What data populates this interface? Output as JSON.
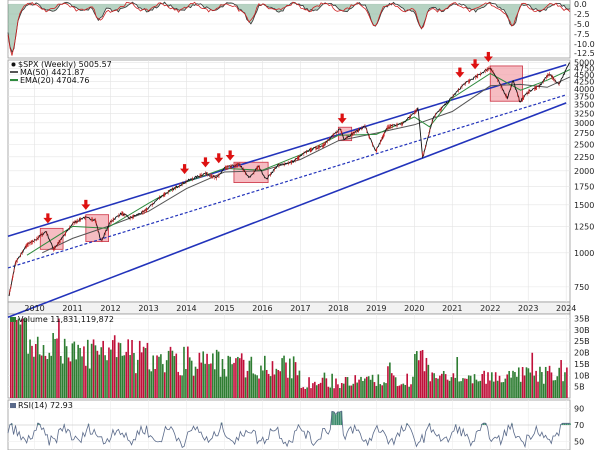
{
  "chart_data": [
    {
      "panel": "indicator-top",
      "type": "line",
      "y_tick_labels": [
        "0.0",
        "-2.5",
        "-5.0",
        "-7.5",
        "-10.0",
        "-12.5"
      ],
      "ylim": [
        -13.5,
        1
      ],
      "colors": {
        "line_dark": "#333333",
        "line_red": "#cc2222",
        "fill": "#2e7d4f"
      }
    },
    {
      "panel": "price",
      "type": "line",
      "title": "$SPX (Weekly) 5005.57",
      "legend": [
        {
          "label": "MA(50) 4421.87",
          "color": "#555555"
        },
        {
          "label": "EMA(20) 4704.76",
          "color": "#2e8b3e"
        }
      ],
      "y_scale": "log",
      "ylim": [
        660,
        5100
      ],
      "y_tick_labels": [
        "5000",
        "4750",
        "4500",
        "4250",
        "4000",
        "3750",
        "3500",
        "3250",
        "3000",
        "2750",
        "2500",
        "2250",
        "2000",
        "1750",
        "1500",
        "1250",
        "1000",
        "750"
      ],
      "y_tick_values": [
        5000,
        4750,
        4500,
        4250,
        4000,
        3750,
        3500,
        3250,
        3000,
        2750,
        2500,
        2250,
        2000,
        1750,
        1500,
        1250,
        1000,
        750
      ],
      "x_tick_labels": [
        "2010",
        "2011",
        "2012",
        "2013",
        "2014",
        "2015",
        "2016",
        "2017",
        "2018",
        "2019",
        "2020",
        "2021",
        "2022",
        "2023",
        "2024"
      ],
      "x_range": [
        2009.3,
        2024.1
      ],
      "price_points": [
        [
          2009.33,
          700
        ],
        [
          2009.5,
          920
        ],
        [
          2009.8,
          1070
        ],
        [
          2010.0,
          1110
        ],
        [
          2010.3,
          1200
        ],
        [
          2010.5,
          1030
        ],
        [
          2010.7,
          1120
        ],
        [
          2011.0,
          1280
        ],
        [
          2011.3,
          1350
        ],
        [
          2011.6,
          1320
        ],
        [
          2011.75,
          1100
        ],
        [
          2012.0,
          1300
        ],
        [
          2012.3,
          1400
        ],
        [
          2012.5,
          1340
        ],
        [
          2012.9,
          1420
        ],
        [
          2013.3,
          1600
        ],
        [
          2013.6,
          1700
        ],
        [
          2014.0,
          1830
        ],
        [
          2014.5,
          1960
        ],
        [
          2014.8,
          1880
        ],
        [
          2015.0,
          2050
        ],
        [
          2015.4,
          2110
        ],
        [
          2015.65,
          1880
        ],
        [
          2015.9,
          2080
        ],
        [
          2016.1,
          1860
        ],
        [
          2016.4,
          2090
        ],
        [
          2016.8,
          2160
        ],
        [
          2017.2,
          2370
        ],
        [
          2017.6,
          2480
        ],
        [
          2018.05,
          2860
        ],
        [
          2018.15,
          2620
        ],
        [
          2018.7,
          2920
        ],
        [
          2018.98,
          2350
        ],
        [
          2019.3,
          2900
        ],
        [
          2019.7,
          2980
        ],
        [
          2020.1,
          3380
        ],
        [
          2020.22,
          2240
        ],
        [
          2020.5,
          3150
        ],
        [
          2020.9,
          3600
        ],
        [
          2021.3,
          4150
        ],
        [
          2021.7,
          4500
        ],
        [
          2022.0,
          4790
        ],
        [
          2022.2,
          4300
        ],
        [
          2022.45,
          3700
        ],
        [
          2022.6,
          4300
        ],
        [
          2022.78,
          3580
        ],
        [
          2023.0,
          3900
        ],
        [
          2023.3,
          4100
        ],
        [
          2023.55,
          4550
        ],
        [
          2023.8,
          4150
        ],
        [
          2024.1,
          5005
        ]
      ],
      "ma50_points": [
        [
          2010.2,
          1000
        ],
        [
          2011.0,
          1130
        ],
        [
          2012.0,
          1260
        ],
        [
          2013.0,
          1420
        ],
        [
          2014.0,
          1720
        ],
        [
          2015.0,
          1980
        ],
        [
          2016.0,
          2000
        ],
        [
          2017.0,
          2200
        ],
        [
          2018.0,
          2580
        ],
        [
          2019.0,
          2750
        ],
        [
          2020.0,
          2950
        ],
        [
          2021.0,
          3300
        ],
        [
          2022.0,
          4100
        ],
        [
          2022.8,
          4150
        ],
        [
          2023.5,
          4050
        ],
        [
          2024.1,
          4420
        ]
      ],
      "ema20_points": [
        [
          2009.8,
          980
        ],
        [
          2011.0,
          1250
        ],
        [
          2011.9,
          1230
        ],
        [
          2013.0,
          1520
        ],
        [
          2014.0,
          1820
        ],
        [
          2015.0,
          2040
        ],
        [
          2016.0,
          2010
        ],
        [
          2017.0,
          2290
        ],
        [
          2018.0,
          2700
        ],
        [
          2019.0,
          2720
        ],
        [
          2020.0,
          3150
        ],
        [
          2020.4,
          2900
        ],
        [
          2021.0,
          3700
        ],
        [
          2022.0,
          4550
        ],
        [
          2022.8,
          3950
        ],
        [
          2023.5,
          4300
        ],
        [
          2024.1,
          4705
        ]
      ],
      "channel_lines": [
        {
          "style": "solid",
          "from": [
            2009.3,
            1150
          ],
          "to": [
            2024.0,
            4900
          ]
        },
        {
          "style": "solid",
          "from": [
            2009.3,
            580
          ],
          "to": [
            2024.0,
            3550
          ]
        },
        {
          "style": "dashed",
          "from": [
            2009.3,
            880
          ],
          "to": [
            2024.0,
            3800
          ]
        }
      ],
      "highlight_boxes": [
        {
          "x": [
            2010.15,
            2010.75
          ],
          "y": [
            1030,
            1230
          ]
        },
        {
          "x": [
            2011.35,
            2011.95
          ],
          "y": [
            1100,
            1380
          ]
        },
        {
          "x": [
            2015.25,
            2016.15
          ],
          "y": [
            1810,
            2150
          ]
        },
        {
          "x": [
            2018.0,
            2018.35
          ],
          "y": [
            2580,
            2890
          ]
        },
        {
          "x": [
            2022.0,
            2022.85
          ],
          "y": [
            3600,
            4850
          ]
        }
      ],
      "arrow_markers": [
        {
          "x": 2010.35,
          "price": 1240
        },
        {
          "x": 2011.35,
          "price": 1390
        },
        {
          "x": 2013.95,
          "price": 1880
        },
        {
          "x": 2014.5,
          "price": 1990
        },
        {
          "x": 2014.85,
          "price": 2060
        },
        {
          "x": 2015.15,
          "price": 2110
        },
        {
          "x": 2018.1,
          "price": 2880
        },
        {
          "x": 2021.2,
          "price": 4250
        },
        {
          "x": 2021.6,
          "price": 4560
        },
        {
          "x": 2021.95,
          "price": 4850
        }
      ],
      "colors": {
        "price": "#111111",
        "channel": "#2233bb",
        "arrow": "#dd1111",
        "box_fill": "#f2a0a8",
        "box_stroke": "#cc3344"
      }
    },
    {
      "panel": "volume",
      "type": "bar",
      "title": "Volume 11,831,119,872",
      "y_tick_labels": [
        "35B",
        "30B",
        "25B",
        "20B",
        "15B",
        "10B",
        "5B"
      ],
      "y_tick_values": [
        35,
        30,
        25,
        20,
        15,
        10,
        5
      ],
      "ylim": [
        0,
        37
      ],
      "unit": "B",
      "colors": {
        "up": "#2e7d32",
        "down": "#c0103a"
      }
    },
    {
      "panel": "rsi",
      "type": "line",
      "title": "RSI(14) 72.93",
      "y_tick_labels": [
        "90",
        "70",
        "50"
      ],
      "y_tick_values": [
        90,
        70,
        50
      ],
      "ylim": [
        40,
        100
      ],
      "colors": {
        "line": "#5a6a8a",
        "overbought_fill": "#3a8a6a"
      }
    }
  ]
}
